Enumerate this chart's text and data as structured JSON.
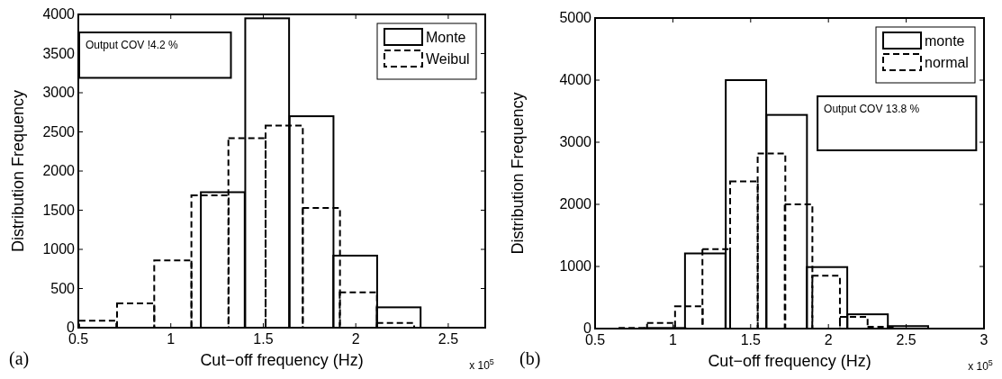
{
  "chart_data": [
    {
      "type": "bar",
      "xlabel": "Cut−off frequency (Hz)",
      "ylabel": "Distribution Frequency",
      "xlim": [
        0.5,
        2.7
      ],
      "xticks": [
        0.5,
        1,
        1.5,
        2,
        2.5
      ],
      "ylim": [
        0,
        4000
      ],
      "yticks": [
        0,
        500,
        1000,
        1500,
        2000,
        2500,
        3000,
        3500,
        4000
      ],
      "legend": "top right",
      "grid": false,
      "annotations": [
        "Output COV !4.2 %",
        "x 10$^{5}$",
        "(a)"
      ],
      "series": [
        {
          "name": "Monte",
          "color": "#000000",
          "line_style": "solid",
          "x": [
            0.809,
            1.045,
            1.281,
            1.521,
            1.761,
            1.997,
            2.232,
            2.468
          ],
          "values": [
            0,
            0,
            1730,
            3950,
            2700,
            920,
            260,
            0
          ]
        },
        {
          "name": "Weibul",
          "color": "#000000",
          "line_style": "dashed",
          "x": [
            0.605,
            0.81,
            1.011,
            1.212,
            1.412,
            1.613,
            1.814,
            2.014,
            2.215
          ],
          "values": [
            90,
            310,
            860,
            1690,
            2420,
            2580,
            1530,
            450,
            60
          ]
        }
      ]
    },
    {
      "type": "bar",
      "xlabel": "Cut−off frequency (Hz)",
      "ylabel": "Distribution Frequency",
      "xlim": [
        0.5,
        3
      ],
      "xticks": [
        0.5,
        1,
        1.5,
        2,
        2.5,
        3
      ],
      "ylim": [
        0,
        5000
      ],
      "yticks": [
        0,
        1000,
        2000,
        3000,
        4000,
        5000
      ],
      "legend": "top right",
      "grid": false,
      "annotations": [
        "Output COV 13.8 %",
        "x 10$^{5}$",
        "(b)"
      ],
      "series": [
        {
          "name": "monte",
          "color": "#000000",
          "line_style": "solid",
          "x": [
            0.69,
            0.95,
            1.208,
            1.47,
            1.732,
            1.991,
            2.252,
            2.511,
            2.77
          ],
          "values": [
            0,
            10,
            1210,
            4000,
            3440,
            990,
            230,
            40,
            0
          ]
        },
        {
          "name": "normal",
          "color": "#000000",
          "line_style": "dashed",
          "x": [
            0.74,
            0.923,
            1.103,
            1.279,
            1.457,
            1.634,
            1.808,
            1.985,
            2.163,
            2.34
          ],
          "values": [
            10,
            90,
            360,
            1280,
            2370,
            2820,
            2000,
            850,
            190,
            30
          ]
        }
      ]
    }
  ]
}
